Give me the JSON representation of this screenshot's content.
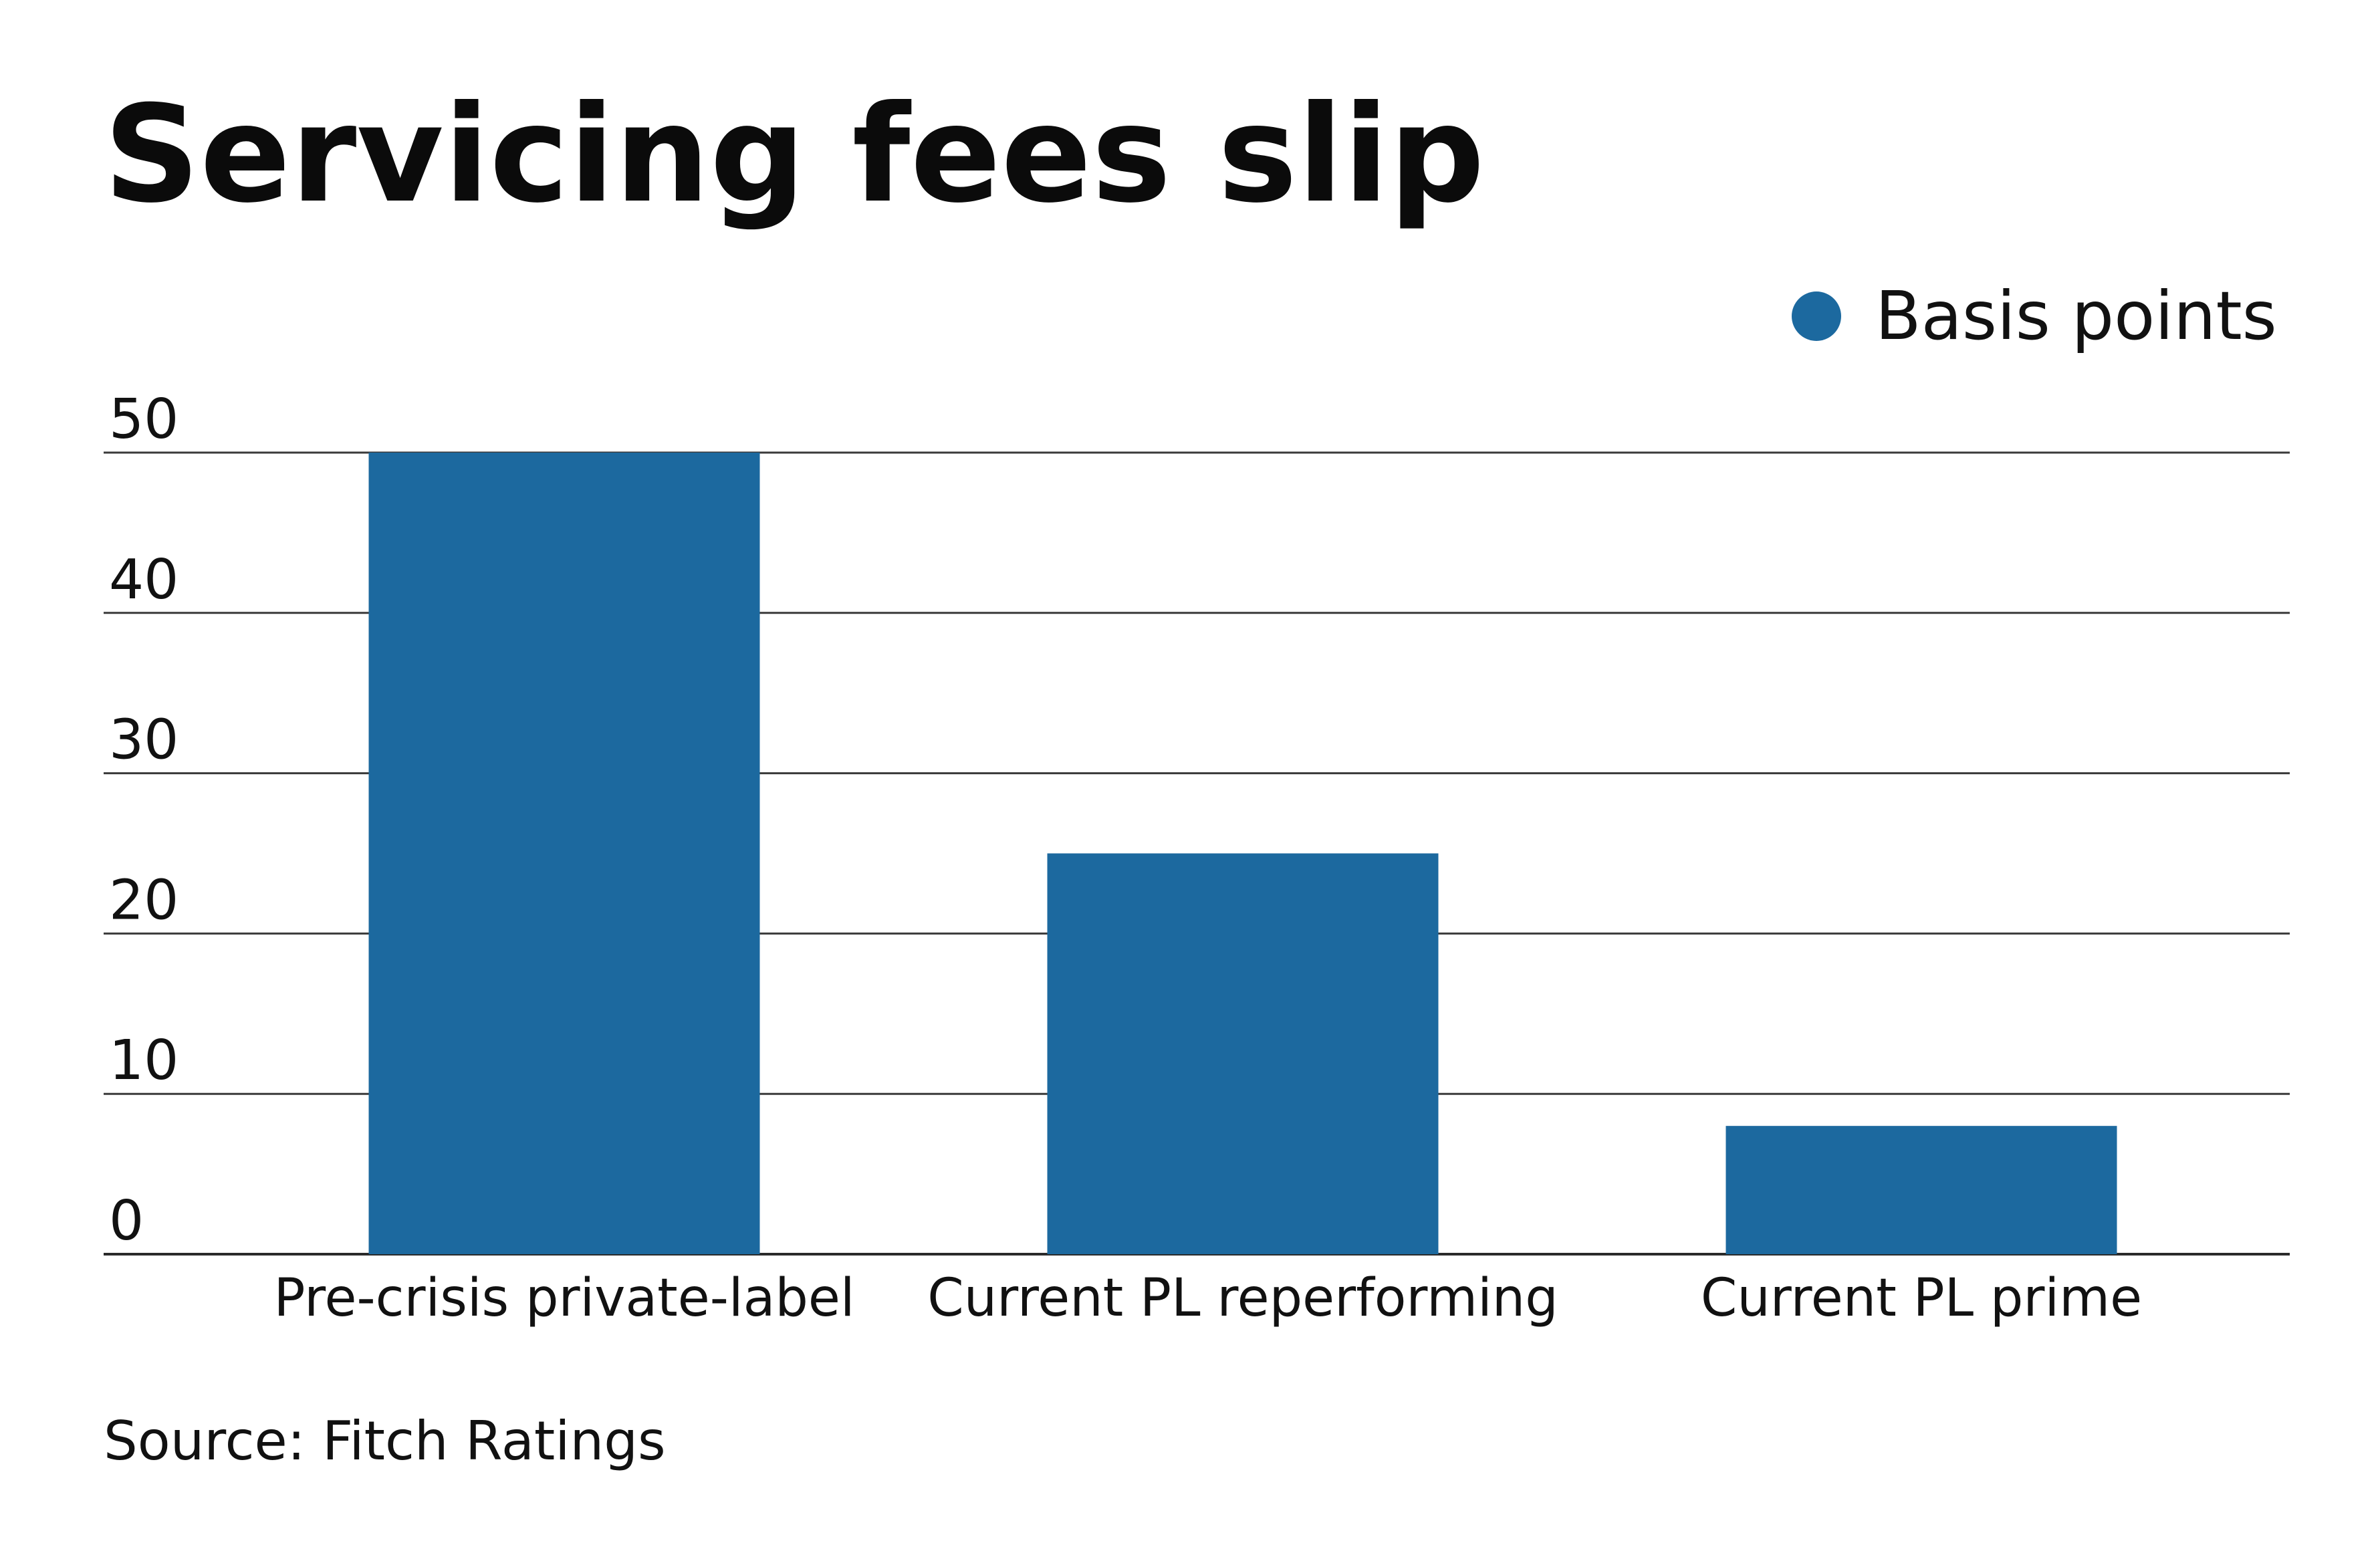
{
  "chart_data": {
    "type": "bar",
    "title": "Servicing fees slip",
    "categories": [
      "Pre-crisis private-label",
      "Current PL reperforming",
      "Current PL prime"
    ],
    "series": [
      {
        "name": "Basis points",
        "values": [
          50,
          25,
          8
        ],
        "color": "#1c699f"
      }
    ],
    "yticks": [
      "0",
      "10",
      "20",
      "30",
      "40",
      "50"
    ],
    "ylim": [
      0,
      50
    ],
    "grid": true,
    "legend": "top-right",
    "source": "Source: Fitch Ratings"
  }
}
